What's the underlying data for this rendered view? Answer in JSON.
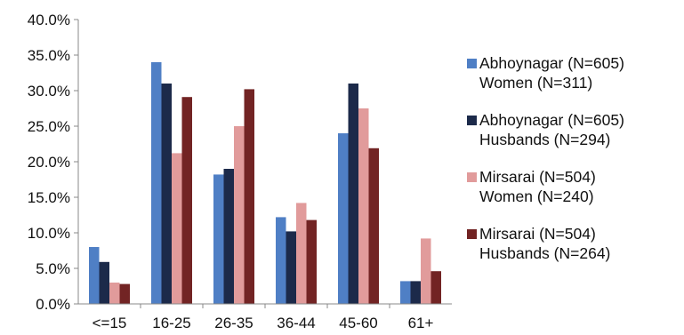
{
  "chart_data": {
    "type": "bar",
    "categories": [
      "<=15",
      "16-25",
      "26-35",
      "36-44",
      "45-60",
      "61+"
    ],
    "y_ticks": [
      "0.0%",
      "5.0%",
      "10.0%",
      "15.0%",
      "20.0%",
      "25.0%",
      "30.0%",
      "35.0%",
      "40.0%"
    ],
    "ylim": [
      0,
      40
    ],
    "legend_position": "right",
    "series": [
      {
        "name_line1": "Abhoynagar (N=605)",
        "name_line2": "Women (N=311)",
        "color": "#4f7fc5",
        "values": [
          8.0,
          34.0,
          18.2,
          12.2,
          24.0,
          3.2
        ]
      },
      {
        "name_line1": "Abhoynagar (N=605)",
        "name_line2": "Husbands (N=294)",
        "color": "#1c2a4a",
        "values": [
          5.9,
          31.0,
          19.0,
          10.2,
          31.0,
          3.2
        ]
      },
      {
        "name_line1": "Mirsarai (N=504)",
        "name_line2": "Women (N=240)",
        "color": "#e19b9b",
        "values": [
          3.0,
          21.2,
          25.0,
          14.2,
          27.5,
          9.2
        ]
      },
      {
        "name_line1": "Mirsarai (N=504)",
        "name_line2": "Husbands (N=264)",
        "color": "#722424",
        "values": [
          2.8,
          29.1,
          30.2,
          11.8,
          21.9,
          4.6
        ]
      }
    ]
  }
}
